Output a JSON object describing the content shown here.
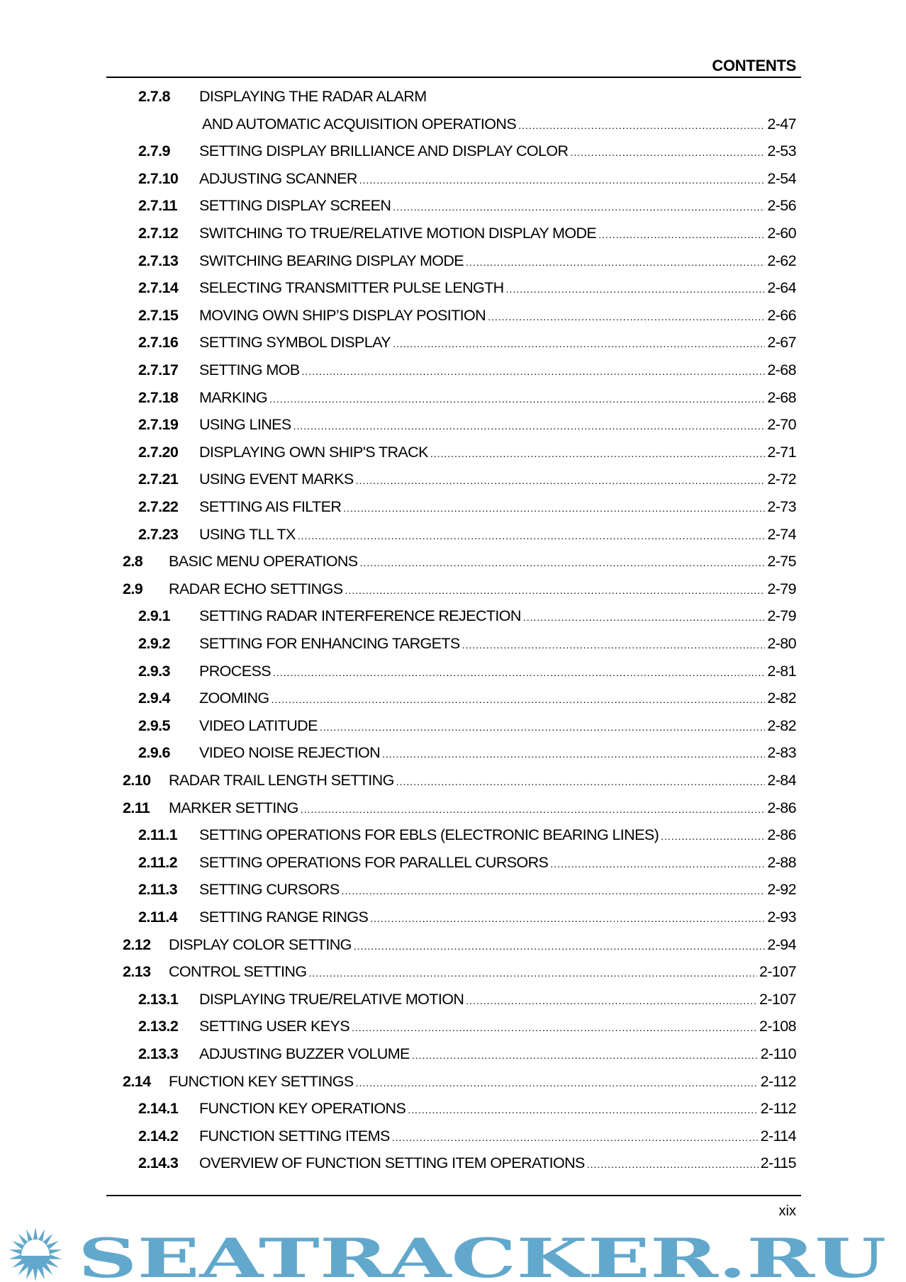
{
  "header": {
    "title": "CONTENTS"
  },
  "toc": [
    {
      "num": "2.7.8",
      "title": "DISPLAYING THE RADAR ALARM",
      "page": "",
      "level": 2
    },
    {
      "num": "",
      "title": "AND AUTOMATIC ACQUISITION OPERATIONS",
      "page": "2-47",
      "level": 3
    },
    {
      "num": "2.7.9",
      "title": "SETTING DISPLAY BRILLIANCE AND DISPLAY COLOR",
      "page": "2-53",
      "level": 2
    },
    {
      "num": "2.7.10",
      "title": "ADJUSTING SCANNER",
      "page": "2-54",
      "level": 2
    },
    {
      "num": "2.7.11",
      "title": "SETTING DISPLAY SCREEN",
      "page": "2-56",
      "level": 2
    },
    {
      "num": "2.7.12",
      "title": "SWITCHING TO TRUE/RELATIVE MOTION DISPLAY MODE",
      "page": "2-60",
      "level": 2
    },
    {
      "num": "2.7.13",
      "title": "SWITCHING BEARING DISPLAY MODE",
      "page": "2-62",
      "level": 2
    },
    {
      "num": "2.7.14",
      "title": "SELECTING TRANSMITTER PULSE LENGTH",
      "page": "2-64",
      "level": 2
    },
    {
      "num": "2.7.15",
      "title": "MOVING OWN SHIP’S DISPLAY POSITION",
      "page": "2-66",
      "level": 2
    },
    {
      "num": "2.7.16",
      "title": "SETTING SYMBOL DISPLAY",
      "page": "2-67",
      "level": 2
    },
    {
      "num": "2.7.17",
      "title": "SETTING MOB",
      "page": "2-68",
      "level": 2
    },
    {
      "num": "2.7.18",
      "title": "MARKING",
      "page": "2-68",
      "level": 2
    },
    {
      "num": "2.7.19",
      "title": "USING LINES",
      "page": "2-70",
      "level": 2
    },
    {
      "num": "2.7.20",
      "title": "DISPLAYING OWN SHIP'S TRACK",
      "page": "2-71",
      "level": 2
    },
    {
      "num": "2.7.21",
      "title": "USING EVENT MARKS",
      "page": "2-72",
      "level": 2
    },
    {
      "num": "2.7.22",
      "title": "SETTING AIS FILTER",
      "page": "2-73",
      "level": 2
    },
    {
      "num": "2.7.23",
      "title": "USING TLL TX",
      "page": "2-74",
      "level": 2
    },
    {
      "num": "2.8",
      "title": "BASIC MENU OPERATIONS",
      "page": "2-75",
      "level": 1
    },
    {
      "num": "2.9",
      "title": "RADAR ECHO SETTINGS",
      "page": "2-79",
      "level": 1
    },
    {
      "num": "2.9.1",
      "title": "SETTING RADAR INTERFERENCE REJECTION",
      "page": "2-79",
      "level": 2
    },
    {
      "num": "2.9.2",
      "title": "SETTING FOR ENHANCING TARGETS",
      "page": "2-80",
      "level": 2
    },
    {
      "num": "2.9.3",
      "title": "PROCESS",
      "page": "2-81",
      "level": 2
    },
    {
      "num": "2.9.4",
      "title": "ZOOMING",
      "page": "2-82",
      "level": 2
    },
    {
      "num": "2.9.5",
      "title": "VIDEO LATITUDE",
      "page": "2-82",
      "level": 2
    },
    {
      "num": "2.9.6",
      "title": "VIDEO NOISE REJECTION",
      "page": "2-83",
      "level": 2
    },
    {
      "num": "2.10",
      "title": "RADAR TRAIL LENGTH SETTING",
      "page": "2-84",
      "level": 1
    },
    {
      "num": "2.11",
      "title": "MARKER SETTING",
      "page": "2-86",
      "level": 1
    },
    {
      "num": "2.11.1",
      "title": "SETTING OPERATIONS FOR EBLS (ELECTRONIC BEARING LINES)",
      "page": "2-86",
      "level": 2
    },
    {
      "num": "2.11.2",
      "title": "SETTING OPERATIONS FOR PARALLEL CURSORS",
      "page": "2-88",
      "level": 2
    },
    {
      "num": "2.11.3",
      "title": "SETTING CURSORS",
      "page": "2-92",
      "level": 2
    },
    {
      "num": "2.11.4",
      "title": "SETTING RANGE RINGS",
      "page": "2-93",
      "level": 2
    },
    {
      "num": "2.12",
      "title": "DISPLAY COLOR SETTING",
      "page": "2-94",
      "level": 1
    },
    {
      "num": "2.13",
      "title": "CONTROL SETTING",
      "page": "2-107",
      "level": 1
    },
    {
      "num": "2.13.1",
      "title": "DISPLAYING TRUE/RELATIVE MOTION",
      "page": "2-107",
      "level": 2
    },
    {
      "num": "2.13.2",
      "title": "SETTING USER KEYS",
      "page": "2-108",
      "level": 2
    },
    {
      "num": "2.13.3",
      "title": "ADJUSTING BUZZER VOLUME",
      "page": "2-110",
      "level": 2
    },
    {
      "num": "2.14",
      "title": "FUNCTION KEY SETTINGS",
      "page": "2-112",
      "level": 1
    },
    {
      "num": "2.14.1",
      "title": "FUNCTION KEY OPERATIONS",
      "page": "2-112",
      "level": 2
    },
    {
      "num": "2.14.2",
      "title": "FUNCTION SETTING ITEMS",
      "page": "2-114",
      "level": 2
    },
    {
      "num": "2.14.3",
      "title": "OVERVIEW OF FUNCTION SETTING ITEM OPERATIONS",
      "page": "2-115",
      "level": 2
    }
  ],
  "footer": {
    "page_number": "xix"
  },
  "watermark": {
    "text": "SEATRACKER.RU",
    "color": "#62a8cc",
    "icon": "sun-icon"
  }
}
